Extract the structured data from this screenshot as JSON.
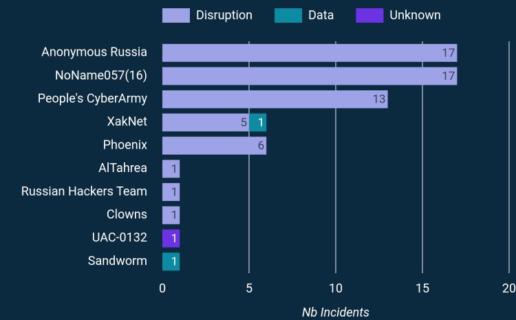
{
  "chart_data": {
    "type": "barh_stacked",
    "categories": [
      "Anonymous Russia",
      "NoName057(16)",
      "People's CyberArmy",
      "XakNet",
      "Phoenix",
      "AlTahrea",
      "Russian Hackers Team",
      "Clowns",
      "UAC-0132",
      "Sandworm"
    ],
    "series": [
      {
        "name": "Disruption",
        "color": "#9da3e6",
        "values": [
          17,
          17,
          13,
          5,
          6,
          1,
          1,
          1,
          0,
          0
        ]
      },
      {
        "name": "Data",
        "color": "#0d8ba3",
        "values": [
          0,
          0,
          0,
          1,
          0,
          0,
          0,
          0,
          0,
          1
        ]
      },
      {
        "name": "Unknown",
        "color": "#6b33e3",
        "values": [
          0,
          0,
          0,
          0,
          0,
          0,
          0,
          0,
          1,
          0
        ]
      }
    ],
    "xlabel": "Nb Incidents",
    "xlim": [
      0,
      20
    ],
    "xticks": [
      0,
      5,
      10,
      15,
      20
    ],
    "grid": true,
    "legend": "top"
  }
}
